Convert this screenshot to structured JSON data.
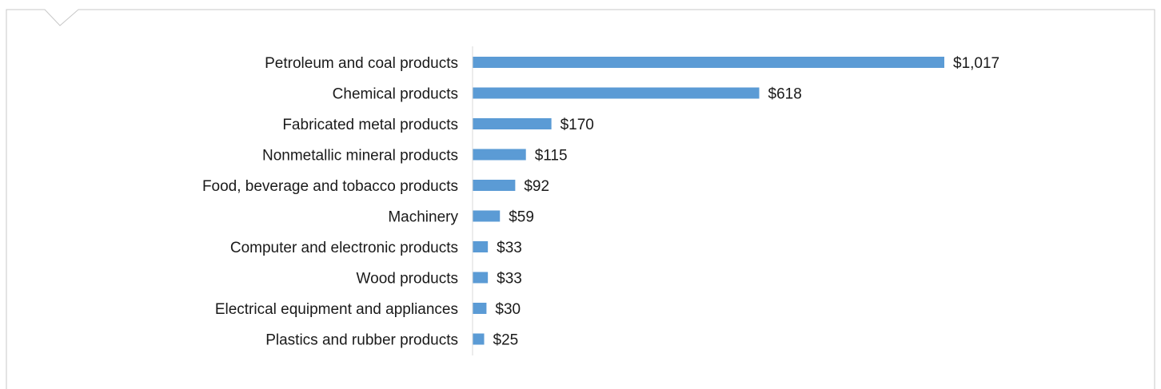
{
  "colors": {
    "bar": "#5b9bd5",
    "axis": "#d9d9d9",
    "frame": "#c8c8c8",
    "text": "#1a1a1a"
  },
  "chart_data": {
    "type": "bar",
    "orientation": "horizontal",
    "categories": [
      "Petroleum and coal products",
      "Chemical products",
      "Fabricated metal products",
      "Nonmetallic mineral products",
      "Food, beverage and tobacco products",
      "Machinery",
      "Computer and electronic products",
      "Wood products",
      "Electrical equipment and appliances",
      "Plastics and rubber products"
    ],
    "values": [
      1017,
      618,
      170,
      115,
      92,
      59,
      33,
      33,
      30,
      25
    ],
    "value_labels": [
      "$1,017",
      "$618",
      "$170",
      "$115",
      "$92",
      "$59",
      "$33",
      "$33",
      "$30",
      "$25"
    ],
    "xlim": [
      0,
      1017
    ],
    "grid": false,
    "legend": "none"
  }
}
